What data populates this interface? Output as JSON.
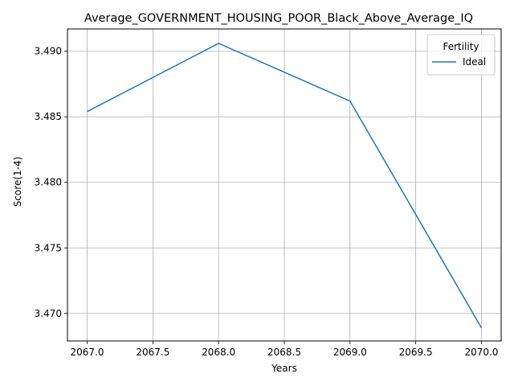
{
  "chart_data": {
    "type": "line",
    "title": "Average_GOVERNMENT_HOUSING_POOR_Black_Above_Average_IQ",
    "xlabel": "Years",
    "ylabel": "Score(1-4)",
    "xlim": [
      2066.85,
      2070.15
    ],
    "ylim": [
      3.4679,
      3.4917
    ],
    "x_ticks": [
      2067.0,
      2067.5,
      2068.0,
      2068.5,
      2069.0,
      2069.5,
      2070.0
    ],
    "x_tick_labels": [
      "2067.0",
      "2067.5",
      "2068.0",
      "2068.5",
      "2069.0",
      "2069.5",
      "2070.0"
    ],
    "y_ticks": [
      3.47,
      3.475,
      3.48,
      3.485,
      3.49
    ],
    "y_tick_labels": [
      "3.470",
      "3.475",
      "3.480",
      "3.485",
      "3.490"
    ],
    "grid": true,
    "legend": {
      "title": "Fertility",
      "placement": "top-right"
    },
    "series": [
      {
        "name": "Ideal",
        "color": "#1f77b4",
        "x": [
          2067,
          2068,
          2069,
          2070
        ],
        "y": [
          3.4854,
          3.4906,
          3.4862,
          3.4689
        ]
      }
    ]
  }
}
